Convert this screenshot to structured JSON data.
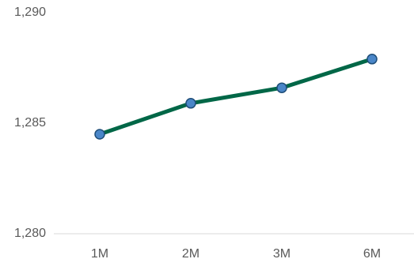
{
  "chart_data": {
    "type": "line",
    "categories": [
      "1M",
      "2M",
      "3M",
      "6M"
    ],
    "series": [
      {
        "values": [
          1284.5,
          1285.9,
          1286.6,
          1287.9
        ],
        "color": "#006747",
        "marker_color": "#4a86c8",
        "marker_edge_color": "#1f4e79"
      }
    ],
    "ylim": [
      1280,
      1290
    ],
    "y_ticks": [
      1280,
      1285,
      1290
    ],
    "y_tick_labels": [
      "1,280",
      "1,285",
      "1,290"
    ],
    "grid": false,
    "axis_color": "#d9d9d9"
  }
}
